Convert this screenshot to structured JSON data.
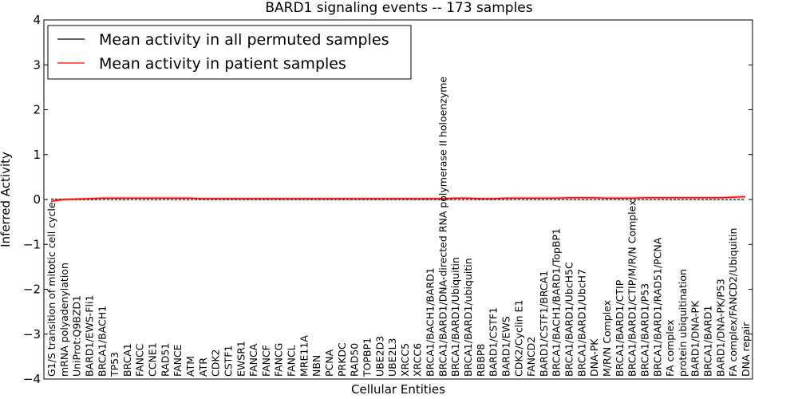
{
  "chart_data": {
    "type": "line",
    "title": "BARD1 signaling events -- 173 samples",
    "xlabel": "Cellular Entities",
    "ylabel": "Inferred Activity",
    "ylim": [
      -4,
      4
    ],
    "yticks": [
      "4",
      "3",
      "2",
      "1",
      "0",
      "−1",
      "−2",
      "−3",
      "−4"
    ],
    "ytick_values": [
      4,
      3,
      2,
      1,
      0,
      -1,
      -2,
      -3,
      -4
    ],
    "legend_position": "top-left",
    "categories": [
      "G1/S transition of mitotic cell cycle",
      "mRNA polyadenylation",
      "UniProt:Q9BZD1",
      "BARD1/EWS-Fli1",
      "BRCA1/BACH1",
      "TP53",
      "BRCA1",
      "FANCC",
      "CCNE1",
      "RAD51",
      "FANCE",
      "ATM",
      "ATR",
      "CDK2",
      "CSTF1",
      "EWSR1",
      "FANCA",
      "FANCF",
      "FANCG",
      "FANCL",
      "MRE11A",
      "NBN",
      "PCNA",
      "PRKDC",
      "RAD50",
      "TOPBP1",
      "UBE2D3",
      "UBE2L3",
      "XRCC5",
      "XRCC6",
      "BRCA1/BACH1/BARD1",
      "BRCA1/BARD1/DNA-directed RNA polymerase II holoenzyme",
      "BRCA1/BARD1/Ubiquitin",
      "BRCA1/BARD1/ubiquitin",
      "RBBP8",
      "BARD1/CSTF1",
      "BARD1/EWS",
      "CDK2/Cyclin E1",
      "FANCD2",
      "BARD1/CSTF1/BRCA1",
      "BRCA1/BACH1/BARD1/TopBP1",
      "BRCA1/BARD1/UbcH5C",
      "BRCA1/BARD1/UbcH7",
      "DNA-PK",
      "M/R/N Complex",
      "BRCA1/BARD1/CTIP",
      "BRCA1/BARD1/CTIP/M/R/N Complex",
      "BRCA1/BARD1/P53",
      "BRCA1/BARD1/RAD51/PCNA",
      "FA complex",
      "protein ubiquitination",
      "BARD1/DNA-PK",
      "BRCA1/BARD1",
      "BARD1/DNA-PK/P53",
      "FA complex/FANCD2/Ubiquitin",
      "DNA repair"
    ],
    "series": [
      {
        "name": "Mean activity in all permuted samples",
        "color": "#000000",
        "values": [
          0.01,
          0.0,
          0.0,
          0.0,
          0.0,
          0.0,
          0.0,
          0.0,
          0.0,
          0.0,
          0.0,
          0.0,
          0.0,
          0.0,
          0.0,
          0.0,
          0.0,
          0.0,
          0.0,
          0.0,
          0.0,
          0.0,
          0.0,
          0.0,
          0.0,
          0.0,
          0.0,
          0.0,
          0.0,
          0.0,
          0.0,
          0.0,
          0.0,
          0.0,
          0.0,
          0.0,
          0.0,
          0.0,
          0.0,
          0.0,
          0.0,
          0.0,
          0.0,
          0.0,
          0.0,
          0.0,
          0.0,
          0.0,
          0.0,
          0.0,
          0.0,
          0.0,
          0.0,
          0.0,
          0.0,
          0.0
        ],
        "band": 0.03
      },
      {
        "name": "Mean activity in patient samples",
        "color": "#ff0000",
        "values": [
          -0.04,
          0.0,
          0.01,
          0.02,
          0.03,
          0.03,
          0.03,
          0.03,
          0.03,
          0.03,
          0.03,
          0.03,
          0.02,
          0.02,
          0.02,
          0.02,
          0.02,
          0.02,
          0.02,
          0.02,
          0.02,
          0.02,
          0.02,
          0.02,
          0.02,
          0.02,
          0.02,
          0.02,
          0.02,
          0.02,
          0.02,
          0.02,
          0.03,
          0.03,
          0.02,
          0.02,
          0.03,
          0.03,
          0.03,
          0.03,
          0.03,
          0.04,
          0.04,
          0.04,
          0.03,
          0.03,
          0.03,
          0.04,
          0.04,
          0.04,
          0.04,
          0.04,
          0.04,
          0.04,
          0.05,
          0.06
        ],
        "band": 0.03
      }
    ]
  }
}
